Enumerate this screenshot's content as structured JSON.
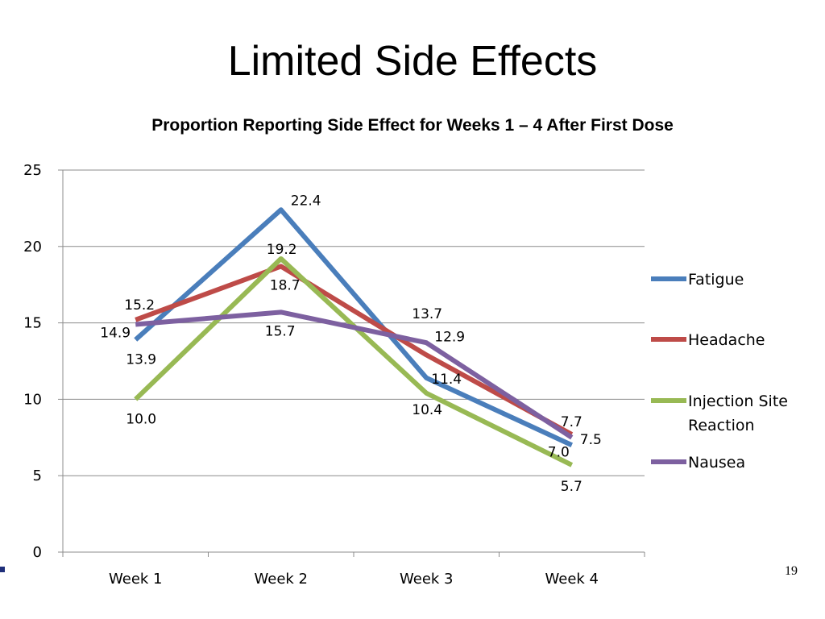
{
  "slide": {
    "title": "Limited Side Effects",
    "page_number": "19"
  },
  "chart_data": {
    "type": "line",
    "title": "Proportion Reporting Side Effect for Weeks 1 – 4 After First Dose",
    "xlabel": "",
    "ylabel": "",
    "categories": [
      "Week 1",
      "Week 2",
      "Week 3",
      "Week 4"
    ],
    "ylim": [
      0,
      25
    ],
    "yticks": [
      "0",
      "5",
      "10",
      "15",
      "20",
      "25"
    ],
    "grid": true,
    "legend_position": "right",
    "series": [
      {
        "name": "Fatigue",
        "color": "#4a7ebb",
        "values": [
          13.9,
          22.4,
          11.4,
          7.0
        ],
        "labels": [
          "13.9",
          "22.4",
          "11.4",
          "7.0"
        ]
      },
      {
        "name": "Headache",
        "color": "#be4b48",
        "values": [
          15.2,
          18.7,
          12.9,
          7.7
        ],
        "labels": [
          "15.2",
          "18.7",
          "12.9",
          "7.7"
        ]
      },
      {
        "name": "Injection Site Reaction",
        "legend_lines": [
          "Injection Site",
          "Reaction"
        ],
        "color": "#98b954",
        "values": [
          10.0,
          19.2,
          10.4,
          5.7
        ],
        "labels": [
          "10.0",
          "19.2",
          "10.4",
          "5.7"
        ]
      },
      {
        "name": "Nausea",
        "color": "#7d60a0",
        "values": [
          14.9,
          15.7,
          13.7,
          7.5
        ],
        "labels": [
          "14.9",
          "15.7",
          "13.7",
          "7.5"
        ]
      }
    ]
  }
}
